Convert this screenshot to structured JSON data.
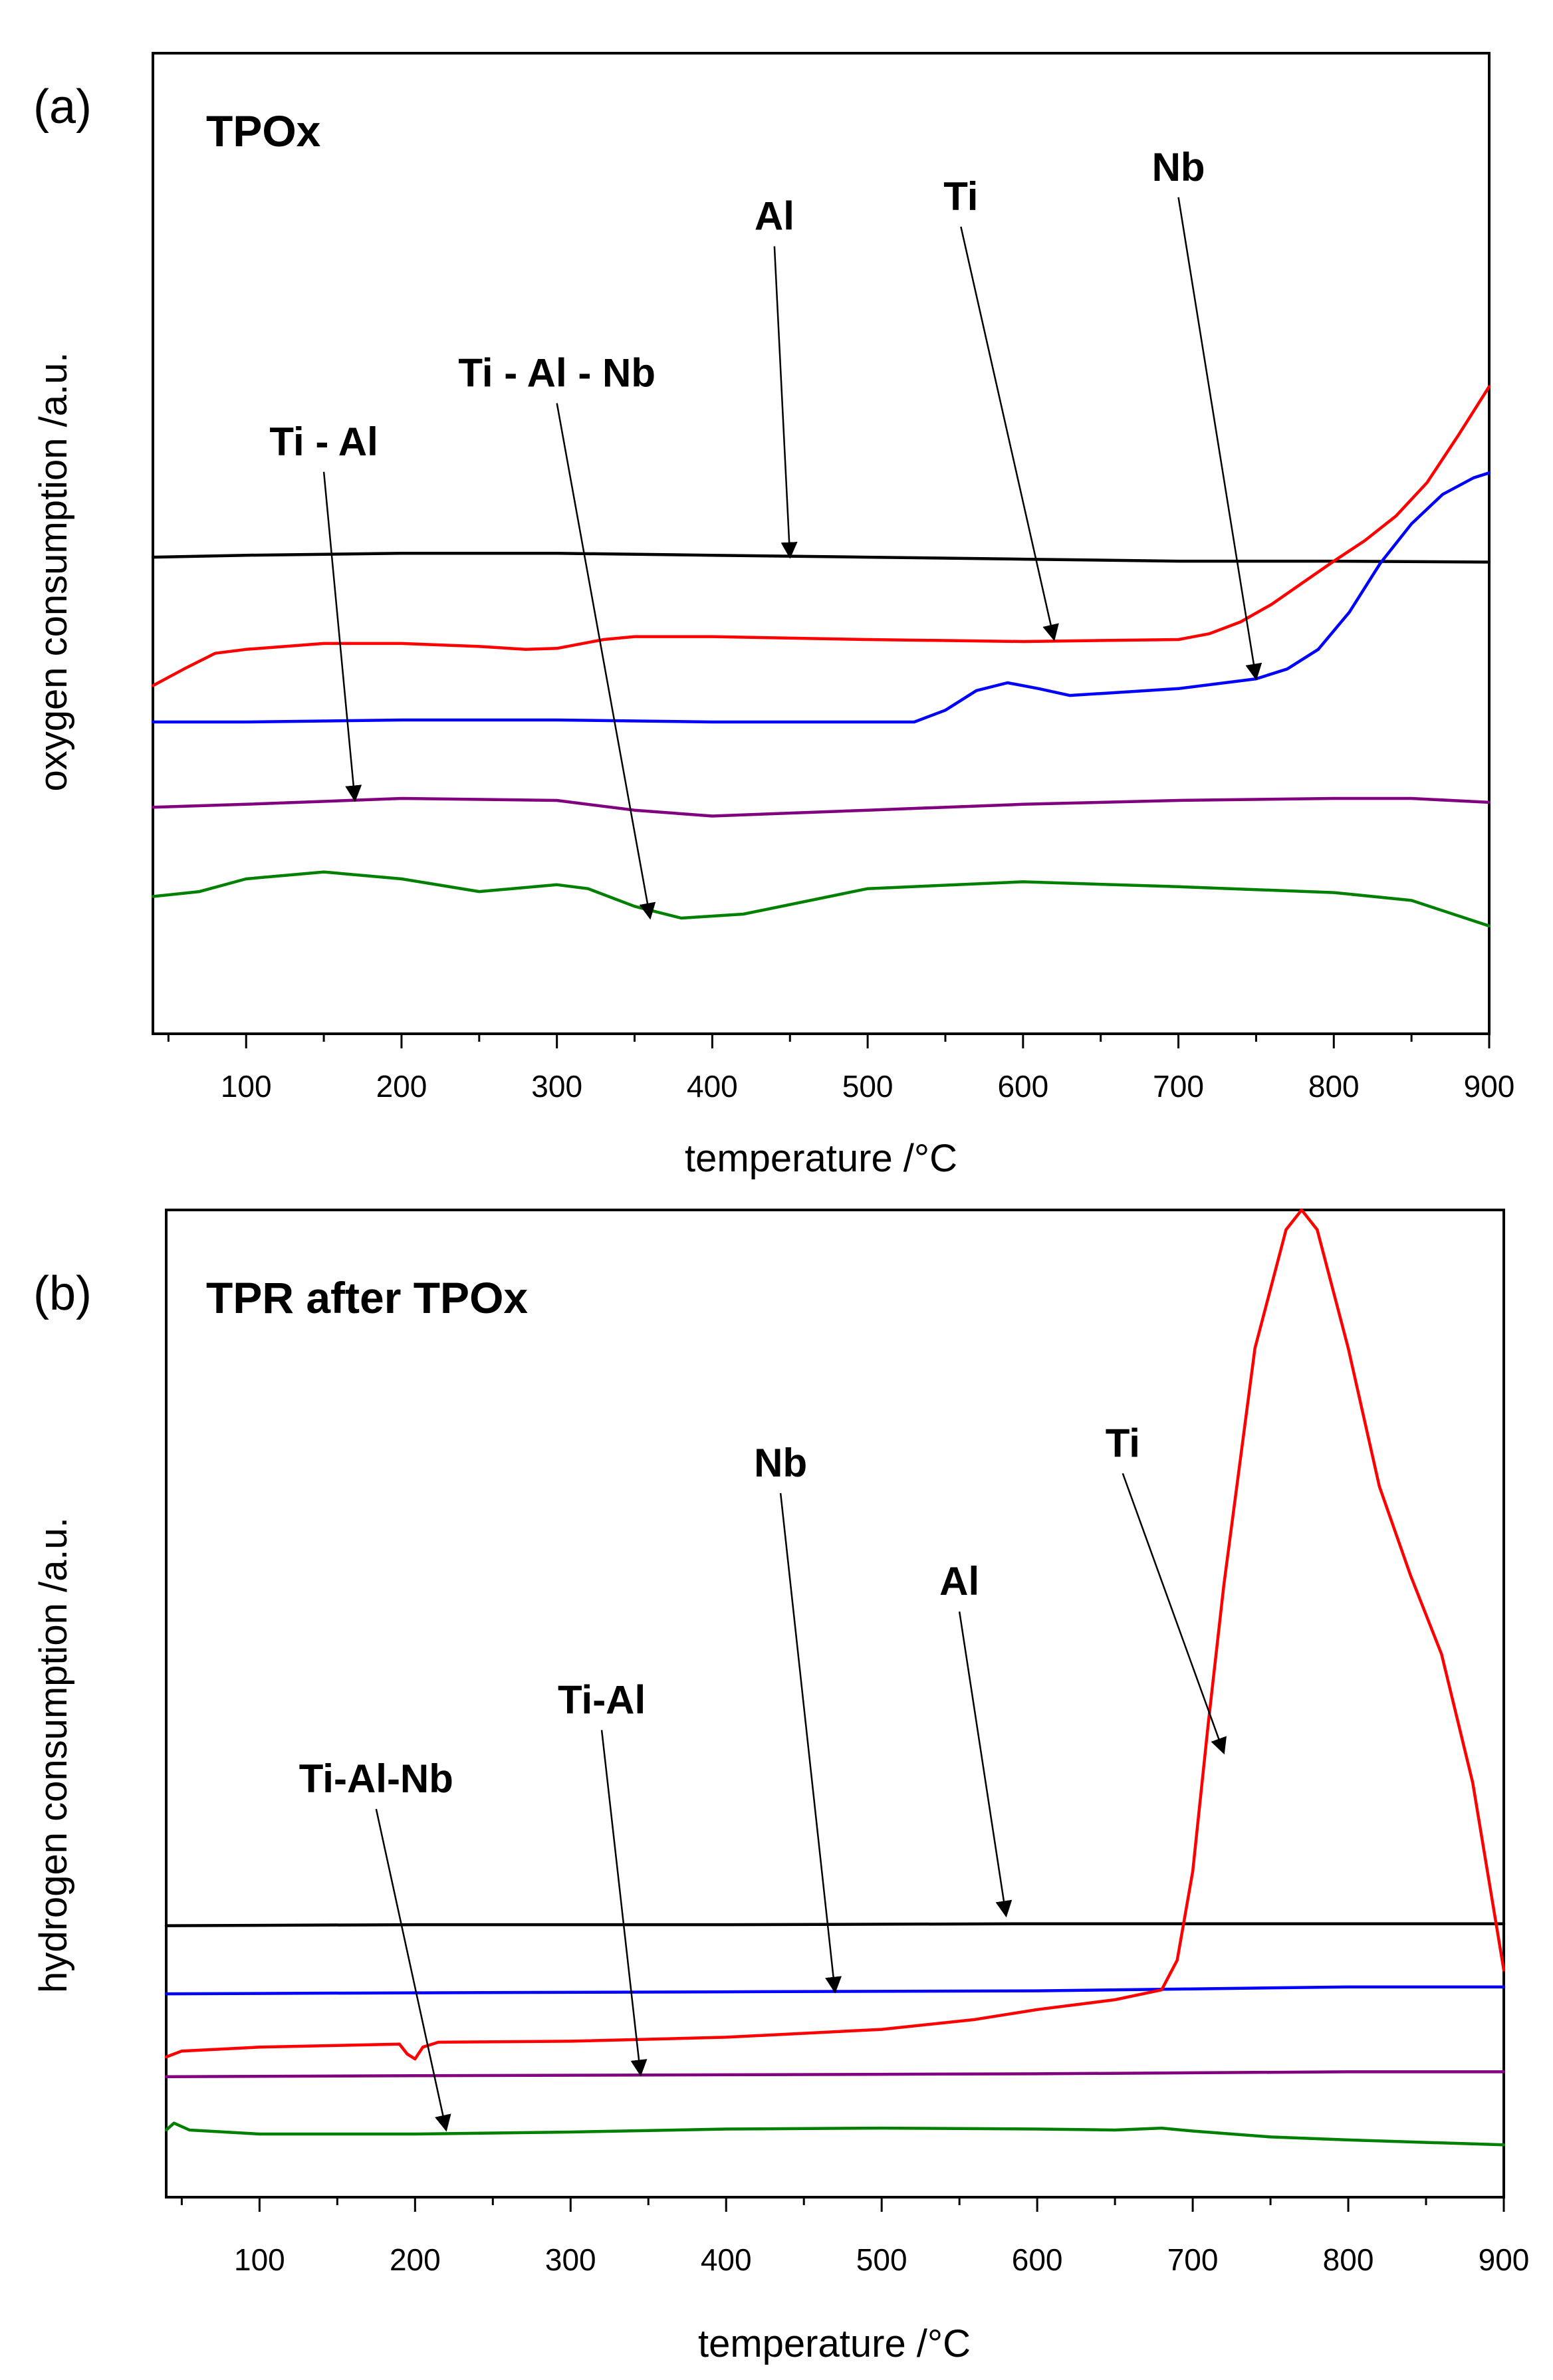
{
  "chart_data": [
    {
      "type": "line",
      "panel_label": "(a)",
      "title": "TPOx",
      "xlabel": "temperature /°C",
      "ylabel": "oxygen consumption /a.u.",
      "xlim": [
        40,
        900
      ],
      "ylim": [
        0,
        1
      ],
      "x_ticks": [
        100,
        200,
        300,
        400,
        500,
        600,
        700,
        800,
        900
      ],
      "x_tick_labels": [
        "100",
        "200",
        "300",
        "400",
        "500",
        "600",
        "700",
        "800",
        "900"
      ],
      "y_ticks_shown": false,
      "series": [
        {
          "name": "Al",
          "color": "#000000",
          "x": [
            40,
            100,
            200,
            300,
            400,
            500,
            600,
            700,
            800,
            900
          ],
          "y": [
            0.486,
            0.488,
            0.49,
            0.49,
            0.488,
            0.486,
            0.484,
            0.482,
            0.482,
            0.481
          ]
        },
        {
          "name": "Ti",
          "color": "#ff0000",
          "x": [
            40,
            60,
            80,
            100,
            150,
            200,
            250,
            280,
            300,
            330,
            350,
            400,
            500,
            600,
            700,
            720,
            740,
            760,
            780,
            800,
            820,
            840,
            860,
            880,
            900
          ],
          "y": [
            0.355,
            0.372,
            0.388,
            0.392,
            0.398,
            0.398,
            0.395,
            0.392,
            0.393,
            0.402,
            0.405,
            0.405,
            0.402,
            0.4,
            0.402,
            0.408,
            0.42,
            0.438,
            0.46,
            0.482,
            0.503,
            0.528,
            0.562,
            0.61,
            0.66
          ]
        },
        {
          "name": "Nb",
          "color": "#0000ff",
          "x": [
            40,
            100,
            200,
            300,
            400,
            500,
            530,
            550,
            570,
            590,
            610,
            630,
            650,
            700,
            750,
            770,
            790,
            810,
            830,
            850,
            870,
            890,
            900
          ],
          "y": [
            0.318,
            0.318,
            0.32,
            0.32,
            0.318,
            0.318,
            0.318,
            0.33,
            0.35,
            0.358,
            0.352,
            0.345,
            0.347,
            0.352,
            0.362,
            0.372,
            0.392,
            0.43,
            0.48,
            0.52,
            0.55,
            0.567,
            0.572
          ]
        },
        {
          "name": "Ti - Al",
          "color": "#800080",
          "x": [
            40,
            100,
            200,
            300,
            350,
            400,
            500,
            600,
            700,
            800,
            850,
            900
          ],
          "y": [
            0.231,
            0.234,
            0.24,
            0.238,
            0.228,
            0.222,
            0.228,
            0.234,
            0.238,
            0.24,
            0.24,
            0.236
          ]
        },
        {
          "name": "Ti - Al - Nb",
          "color": "#008000",
          "x": [
            40,
            70,
            100,
            150,
            200,
            250,
            300,
            320,
            350,
            380,
            420,
            500,
            600,
            700,
            800,
            850,
            900
          ],
          "y": [
            0.14,
            0.145,
            0.158,
            0.165,
            0.158,
            0.145,
            0.152,
            0.148,
            0.13,
            0.118,
            0.122,
            0.148,
            0.155,
            0.15,
            0.144,
            0.136,
            0.11
          ]
        }
      ],
      "annotations": [
        {
          "text": "Al",
          "points_to": [
            450,
            0.486
          ],
          "text_at": [
            440,
            0.82
          ]
        },
        {
          "text": "Ti",
          "points_to": [
            620,
            0.402
          ],
          "text_at": [
            560,
            0.84
          ]
        },
        {
          "text": "Nb",
          "points_to": [
            750,
            0.362
          ],
          "text_at": [
            700,
            0.87
          ]
        },
        {
          "text": "Ti - Al - Nb",
          "points_to": [
            360,
            0.118
          ],
          "text_at": [
            300,
            0.66
          ]
        },
        {
          "text": "Ti - Al",
          "points_to": [
            170,
            0.238
          ],
          "text_at": [
            150,
            0.59
          ]
        }
      ]
    },
    {
      "type": "line",
      "panel_label": "(b)",
      "title": "TPR after TPOx",
      "xlabel": "temperature /°C",
      "ylabel": "hydrogen consumption /a.u.",
      "xlim": [
        40,
        900
      ],
      "ylim": [
        0,
        1
      ],
      "x_ticks": [
        100,
        200,
        300,
        400,
        500,
        600,
        700,
        800,
        900
      ],
      "x_tick_labels": [
        "100",
        "200",
        "300",
        "400",
        "500",
        "600",
        "700",
        "800",
        "900"
      ],
      "y_ticks_shown": false,
      "series": [
        {
          "name": "Al",
          "color": "#000000",
          "x": [
            40,
            200,
            400,
            600,
            800,
            900
          ],
          "y": [
            0.275,
            0.276,
            0.276,
            0.277,
            0.277,
            0.277
          ]
        },
        {
          "name": "Nb",
          "color": "#0000ff",
          "x": [
            40,
            200,
            400,
            600,
            700,
            800,
            900
          ],
          "y": [
            0.206,
            0.207,
            0.208,
            0.209,
            0.211,
            0.213,
            0.213
          ]
        },
        {
          "name": "Ti",
          "color": "#ff0000",
          "x": [
            40,
            50,
            100,
            190,
            195,
            200,
            205,
            215,
            300,
            400,
            500,
            560,
            600,
            650,
            680,
            690,
            700,
            710,
            720,
            740,
            760,
            770,
            780,
            800,
            820,
            840,
            860,
            880,
            900
          ],
          "y": [
            0.142,
            0.148,
            0.152,
            0.155,
            0.145,
            0.14,
            0.152,
            0.157,
            0.158,
            0.162,
            0.17,
            0.18,
            0.19,
            0.2,
            0.21,
            0.24,
            0.33,
            0.48,
            0.62,
            0.86,
            0.98,
            1.0,
            0.98,
            0.86,
            0.72,
            0.63,
            0.55,
            0.42,
            0.23
          ]
        },
        {
          "name": "Ti-Al",
          "color": "#800080",
          "x": [
            40,
            200,
            400,
            600,
            800,
            900
          ],
          "y": [
            0.122,
            0.123,
            0.124,
            0.125,
            0.127,
            0.127
          ]
        },
        {
          "name": "Ti-Al-Nb",
          "color": "#008000",
          "x": [
            40,
            45,
            55,
            100,
            200,
            300,
            400,
            500,
            600,
            650,
            680,
            700,
            750,
            800,
            900
          ],
          "y": [
            0.068,
            0.075,
            0.068,
            0.064,
            0.064,
            0.066,
            0.069,
            0.07,
            0.069,
            0.068,
            0.07,
            0.067,
            0.061,
            0.058,
            0.053
          ]
        }
      ],
      "annotations": [
        {
          "text": "Nb",
          "points_to": [
            470,
            0.208
          ],
          "text_at": [
            435,
            0.73
          ]
        },
        {
          "text": "Al",
          "points_to": [
            580,
            0.285
          ],
          "text_at": [
            550,
            0.61
          ]
        },
        {
          "text": "Ti",
          "points_to": [
            720,
            0.45
          ],
          "text_at": [
            655,
            0.75
          ]
        },
        {
          "text": "Ti-Al",
          "points_to": [
            345,
            0.124
          ],
          "text_at": [
            320,
            0.49
          ]
        },
        {
          "text": "Ti-Al-Nb",
          "points_to": [
            220,
            0.068
          ],
          "text_at": [
            175,
            0.41
          ]
        }
      ]
    }
  ]
}
